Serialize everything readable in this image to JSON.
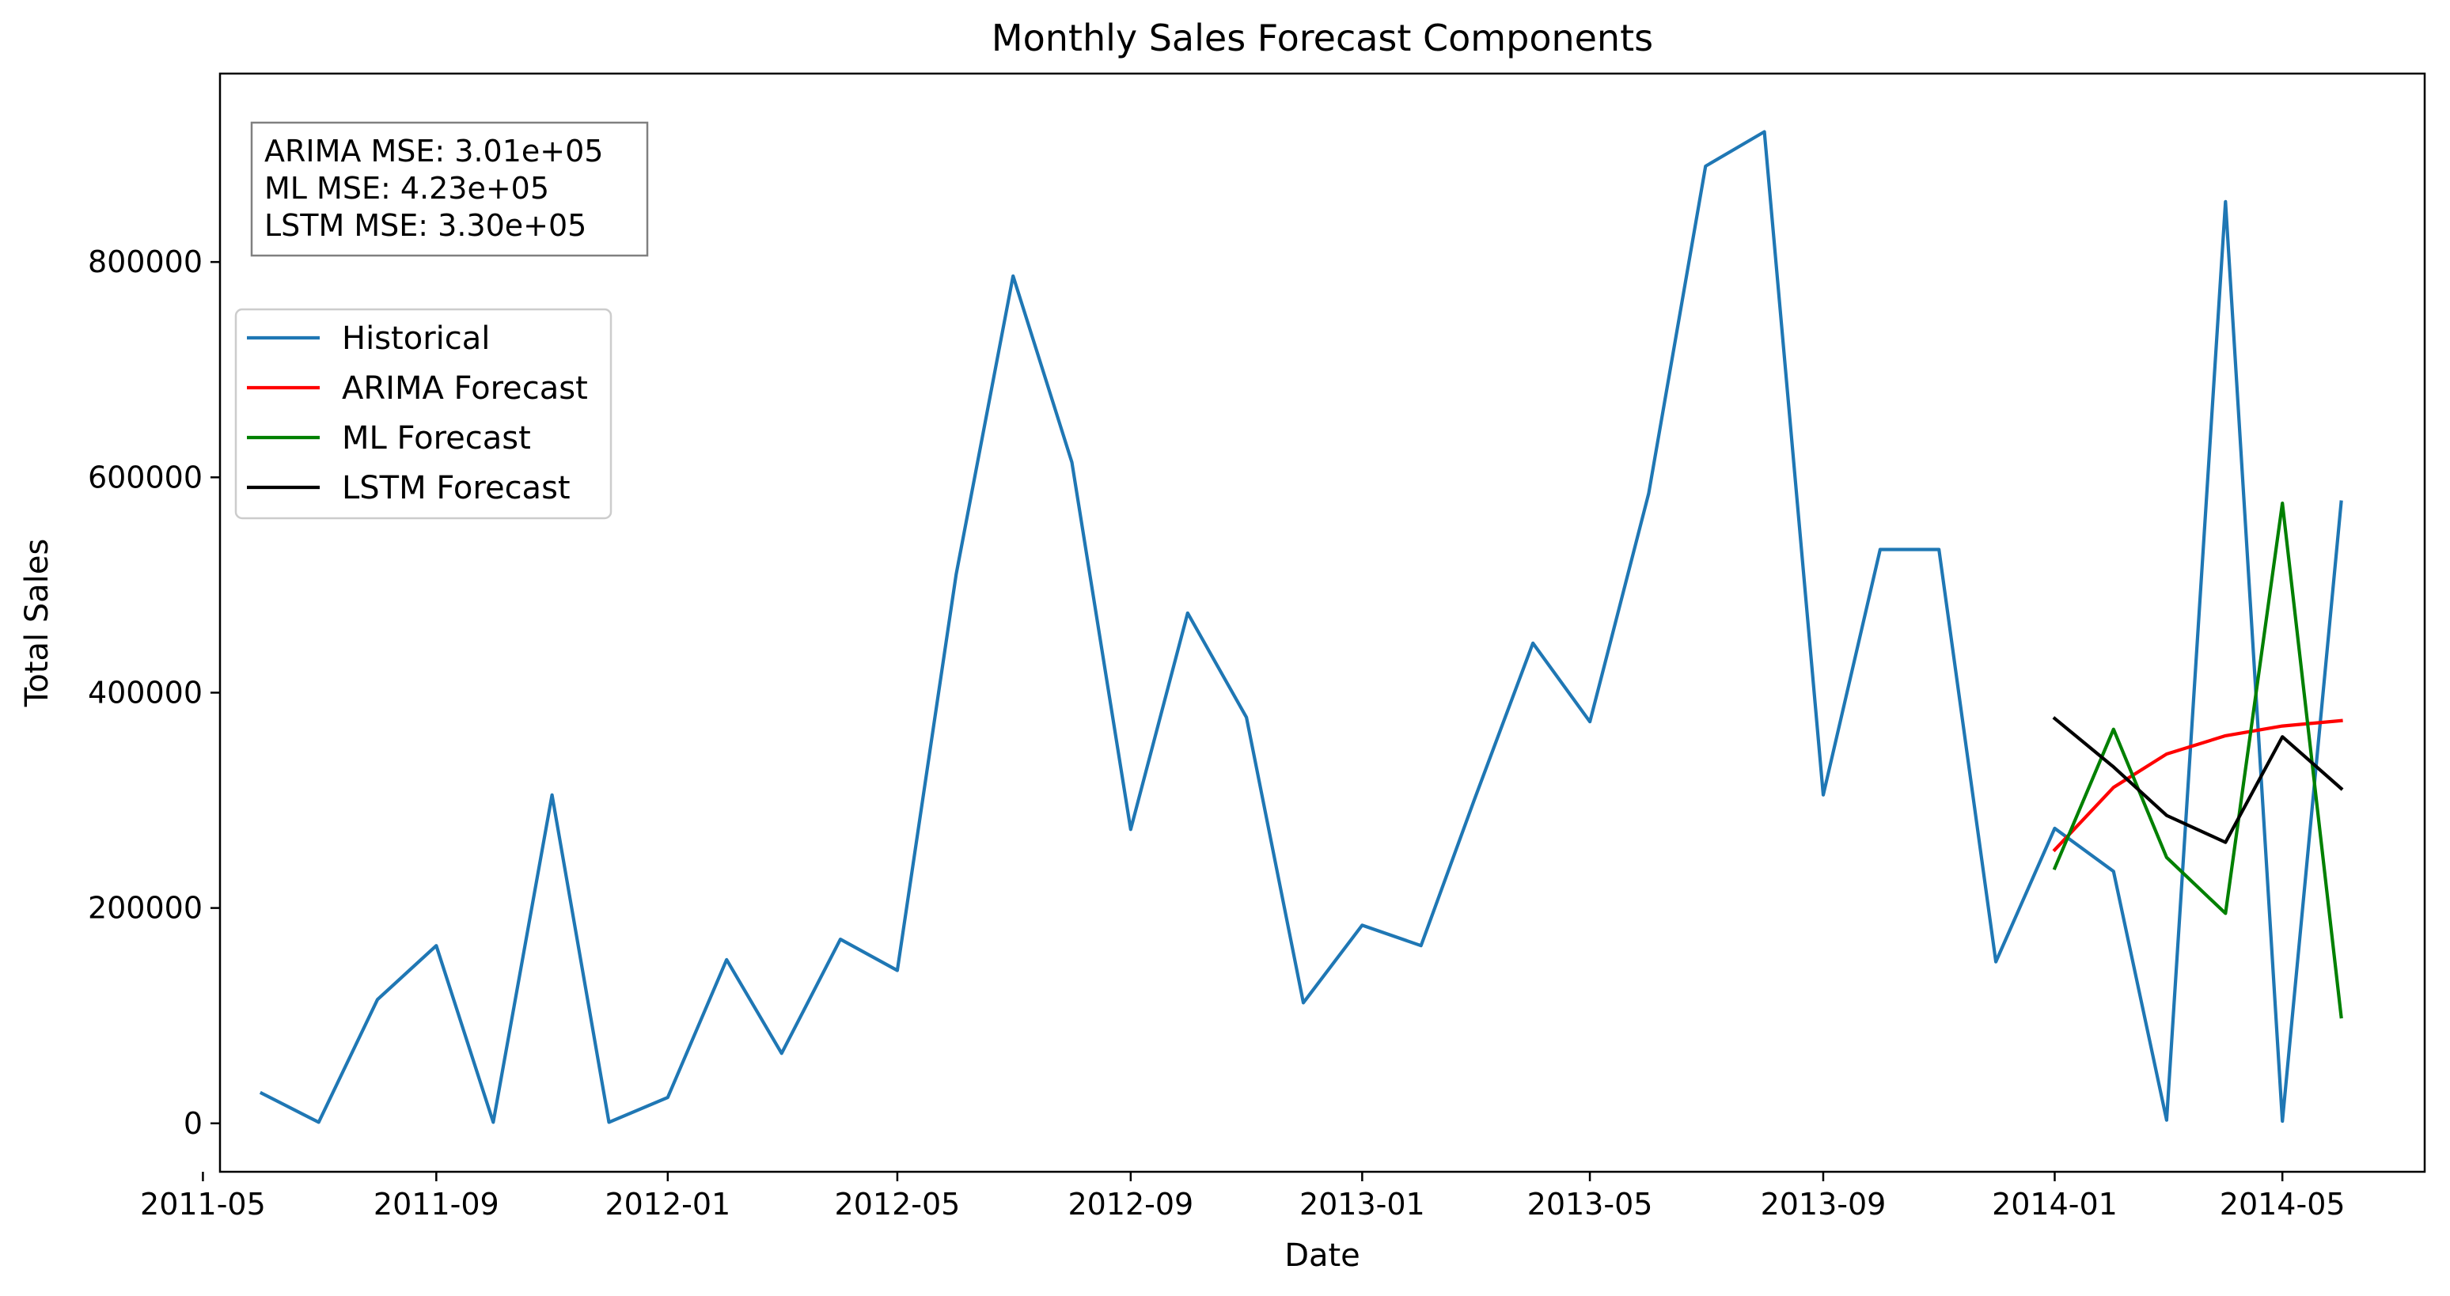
{
  "chart_data": {
    "type": "line",
    "title": "Monthly Sales Forecast Components",
    "xlabel": "Date",
    "ylabel": "Total Sales",
    "xlim": [
      "2011-05-10",
      "2014-07-15"
    ],
    "ylim": [
      -45000,
      975000
    ],
    "x_ticks": [
      "2011-05-01",
      "2011-09-01",
      "2012-01-01",
      "2012-05-01",
      "2012-09-01",
      "2013-01-01",
      "2013-05-01",
      "2013-09-01",
      "2014-01-01",
      "2014-05-01"
    ],
    "x_tick_labels": [
      "2011-05",
      "2011-09",
      "2012-01",
      "2012-05",
      "2012-09",
      "2013-01",
      "2013-05",
      "2013-09",
      "2014-01",
      "2014-05"
    ],
    "y_ticks": [
      0,
      200000,
      400000,
      600000,
      800000
    ],
    "y_tick_labels": [
      "0",
      "200000",
      "400000",
      "600000",
      "800000"
    ],
    "grid": false,
    "legend_position": "upper-left",
    "series": [
      {
        "name": "Historical",
        "color": "#1f77b4",
        "x": [
          "2011-06-01",
          "2011-07-01",
          "2011-08-01",
          "2011-09-01",
          "2011-10-01",
          "2011-11-01",
          "2011-12-01",
          "2012-01-01",
          "2012-02-01",
          "2012-03-01",
          "2012-04-01",
          "2012-05-01",
          "2012-06-01",
          "2012-07-01",
          "2012-08-01",
          "2012-09-01",
          "2012-10-01",
          "2012-11-01",
          "2012-12-01",
          "2013-01-01",
          "2013-02-01",
          "2013-03-01",
          "2013-04-01",
          "2013-05-01",
          "2013-06-01",
          "2013-07-01",
          "2013-08-01",
          "2013-09-01",
          "2013-10-01",
          "2013-11-01",
          "2013-12-01",
          "2014-01-01",
          "2014-02-01",
          "2014-03-01",
          "2014-04-01",
          "2014-05-01",
          "2014-06-01"
        ],
        "values": [
          28000,
          1000,
          115000,
          165000,
          1000,
          305000,
          1000,
          24000,
          152000,
          65000,
          171000,
          142000,
          510000,
          787000,
          614000,
          273000,
          474000,
          377000,
          112000,
          184000,
          165000,
          300000,
          446000,
          373000,
          585000,
          889000,
          921000,
          305000,
          533000,
          533000,
          150000,
          274000,
          234000,
          3000,
          856000,
          2000,
          577000
        ]
      },
      {
        "name": "ARIMA Forecast",
        "color": "#ff0000",
        "x": [
          "2014-01-01",
          "2014-02-01",
          "2014-03-01",
          "2014-04-01",
          "2014-05-01",
          "2014-06-01"
        ],
        "values": [
          254000,
          312000,
          343000,
          360000,
          369000,
          374000
        ]
      },
      {
        "name": "ML Forecast",
        "color": "#008000",
        "x": [
          "2014-01-01",
          "2014-02-01",
          "2014-03-01",
          "2014-04-01",
          "2014-05-01",
          "2014-06-01"
        ],
        "values": [
          237000,
          366000,
          247000,
          195000,
          576000,
          99000
        ]
      },
      {
        "name": "LSTM Forecast",
        "color": "#000000",
        "x": [
          "2014-01-01",
          "2014-02-01",
          "2014-03-01",
          "2014-04-01",
          "2014-05-01",
          "2014-06-01"
        ],
        "values": [
          376000,
          331000,
          286000,
          261000,
          359000,
          311000
        ]
      }
    ],
    "annotations": [
      "ARIMA MSE: 3.01e+05",
      "ML MSE: 4.23e+05",
      "LSTM MSE: 3.30e+05"
    ]
  }
}
